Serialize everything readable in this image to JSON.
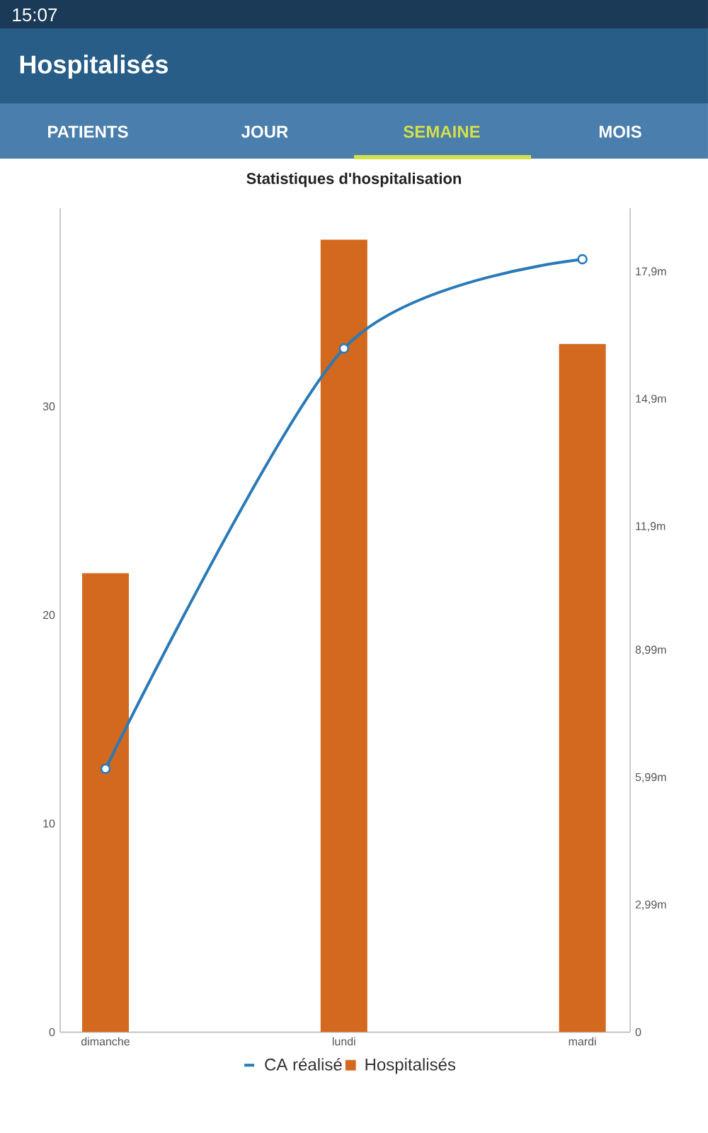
{
  "chart_data": {
    "type": "bar",
    "title": "Statistiques d'hospitalisation",
    "annotations": [
      "15:07",
      "Hospitalisés",
      "PATIENTS",
      "JOUR",
      "SEMAINE",
      "MOIS"
    ],
    "categories": [
      "dimanche",
      "lundi",
      "mardi"
    ],
    "series": [
      {
        "name": "CA réalisé",
        "type": "line",
        "axis": "y2",
        "color": "#2a7ab8",
        "values": [
          6.2,
          16.1,
          18.2
        ]
      },
      {
        "name": "Hospitalisés",
        "color": "#d2691e",
        "values": [
          22,
          38,
          33
        ]
      }
    ],
    "ylim": [
      0,
      39.5
    ],
    "yticks": [
      0,
      10,
      20,
      30
    ],
    "y2lim": [
      0,
      19.4
    ],
    "y2ticks": [
      0,
      {
        "value": 2.99,
        "label": "2,99m"
      },
      {
        "value": 5.99,
        "label": "5,99m"
      },
      {
        "value": 8.99,
        "label": "8,99m"
      },
      {
        "value": 11.9,
        "label": "11,9m"
      },
      {
        "value": 14.9,
        "label": "14,9m"
      },
      {
        "value": 17.9,
        "label": "17,9m"
      }
    ],
    "legend": "bottom",
    "marker": "circle",
    "line_style": "solid"
  }
}
